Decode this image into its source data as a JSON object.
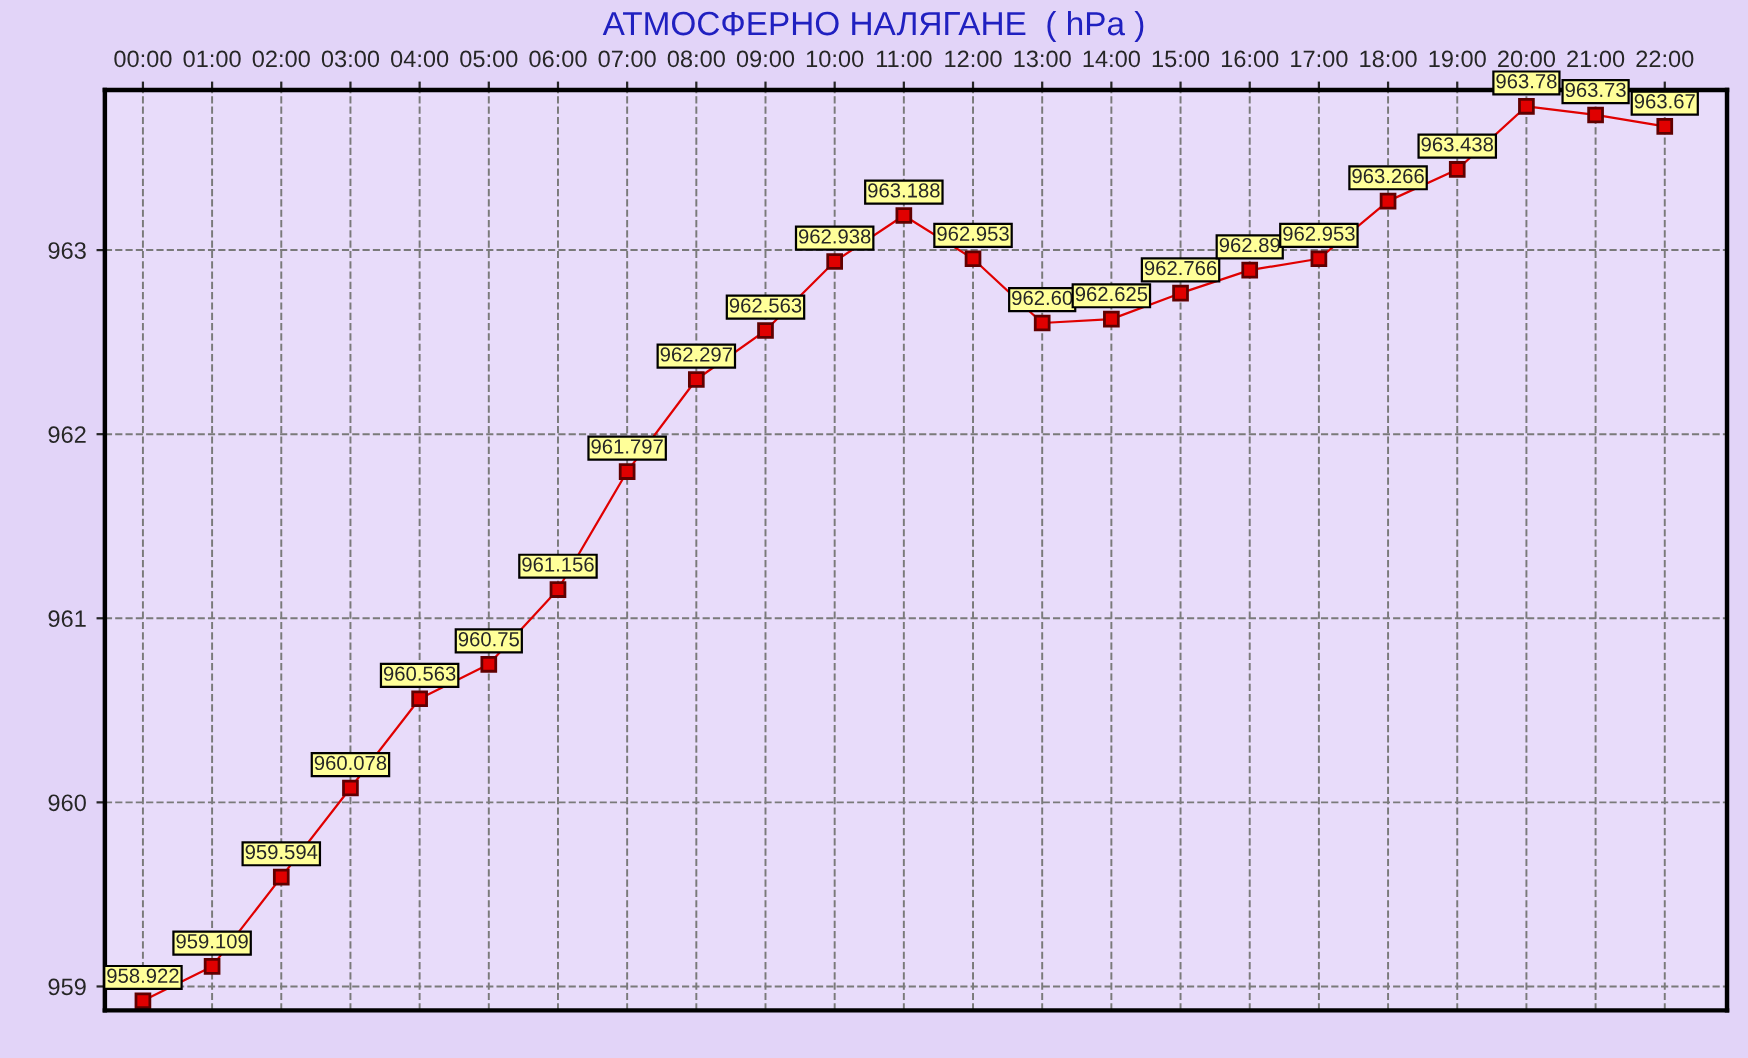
{
  "chart_data": {
    "type": "line",
    "title": "АТМОСФЕРНО НАЛЯГАНЕ  ( hPa )",
    "categories": [
      "00:00",
      "01:00",
      "02:00",
      "03:00",
      "04:00",
      "05:00",
      "06:00",
      "07:00",
      "08:00",
      "09:00",
      "10:00",
      "11:00",
      "12:00",
      "13:00",
      "14:00",
      "15:00",
      "16:00",
      "17:00",
      "18:00",
      "19:00",
      "20:00",
      "21:00",
      "22:00"
    ],
    "series": [
      {
        "color": "#e00000",
        "values": [
          958.922,
          959.109,
          959.594,
          960.078,
          960.563,
          960.75,
          961.156,
          961.797,
          962.297,
          962.563,
          962.938,
          963.188,
          962.953,
          962.604,
          962.625,
          962.766,
          962.891,
          962.953,
          963.266,
          963.438,
          963.781,
          963.734,
          963.672
        ],
        "value_labels": [
          "958.922",
          "959.109",
          "959.594",
          "960.078",
          "960.563",
          "960.75",
          "961.156",
          "961.797",
          "962.297",
          "962.563",
          "962.938",
          "963.188",
          "962.953",
          "962.60",
          "962.625",
          "962.766",
          "962.89",
          "962.953",
          "963.266",
          "963.438",
          "963.78",
          "963.73",
          "963.67"
        ]
      }
    ],
    "ylim": [
      958.87,
      963.87
    ],
    "yticks": [
      959,
      960,
      961,
      962,
      963
    ],
    "marker": "square",
    "line_style": "solid",
    "grid": true
  }
}
